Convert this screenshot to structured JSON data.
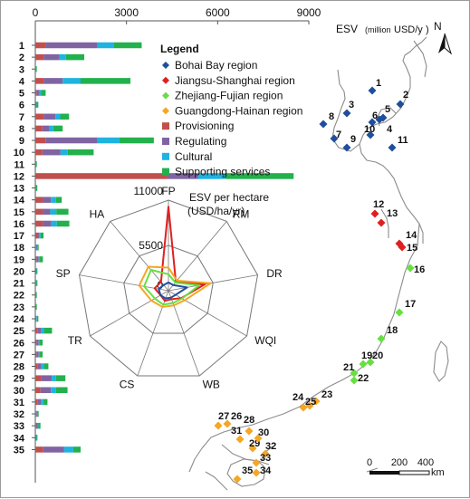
{
  "colors": {
    "bohai": "#1f4e9c",
    "jiangsu": "#e02020",
    "zhejiang": "#66e040",
    "guangdong": "#f5a623",
    "provisioning": "#c0504d",
    "regulating": "#8064a2",
    "cultural": "#1fb3e0",
    "supporting": "#22b14c",
    "coast": "#8c8c8c"
  },
  "bar_axis": {
    "ticks": [
      "0",
      "3000",
      "6000",
      "9000"
    ],
    "title_main": "ESV",
    "title_unit_small": "(million",
    "title_unit_rest": "USD/y",
    "title_close": ")"
  },
  "north_label": "N",
  "legend": {
    "title": "Legend",
    "items": [
      {
        "label": "Bohai Bay region",
        "marker": "diamond",
        "color_key": "bohai"
      },
      {
        "label": "Jiangsu-Shanghai region",
        "marker": "diamond",
        "color_key": "jiangsu"
      },
      {
        "label": "Zhejiang-Fujian region",
        "marker": "diamond",
        "color_key": "zhejiang"
      },
      {
        "label": "Guangdong-Hainan region",
        "marker": "diamond",
        "color_key": "guangdong"
      },
      {
        "label": "Provisioning",
        "marker": "square",
        "color_key": "provisioning"
      },
      {
        "label": "Regulating",
        "marker": "square",
        "color_key": "regulating"
      },
      {
        "label": "Cultural",
        "marker": "square",
        "color_key": "cultural"
      },
      {
        "label": "Supporting services",
        "marker": "square",
        "color_key": "supporting"
      }
    ]
  },
  "radar": {
    "title_line1": "ESV per hectare",
    "title_line2": "(USD/ha/yr)",
    "rings": [
      "11000",
      "5500",
      "0"
    ],
    "max": 11000,
    "axes": [
      "FP",
      "RM",
      "DR",
      "WQI",
      "WB",
      "CS",
      "TR",
      "SP",
      "HA"
    ],
    "series": [
      {
        "region": "Jiangsu-Shanghai",
        "color_key": "jiangsu",
        "values": [
          10200,
          1400,
          4500,
          1800,
          1100,
          1300,
          1100,
          1700,
          1400
        ]
      },
      {
        "region": "Guangdong-Hainan",
        "color_key": "guangdong",
        "values": [
          2800,
          1600,
          5200,
          2300,
          1900,
          2100,
          2400,
          3600,
          3800
        ]
      },
      {
        "region": "Zhejiang-Fujian",
        "color_key": "zhejiang",
        "values": [
          2000,
          1300,
          3800,
          1900,
          1600,
          1800,
          1900,
          3000,
          3300
        ]
      },
      {
        "region": "Bohai Bay",
        "color_key": "bohai",
        "values": [
          1000,
          900,
          2300,
          1000,
          900,
          1000,
          1100,
          1200,
          900
        ]
      }
    ]
  },
  "chart_data": {
    "type": "bar",
    "orientation": "horizontal-stacked",
    "categories": [
      "1",
      "2",
      "3",
      "4",
      "5",
      "6",
      "7",
      "8",
      "9",
      "10",
      "11",
      "12",
      "13",
      "14",
      "15",
      "16",
      "17",
      "18",
      "19",
      "20",
      "21",
      "22",
      "23",
      "24",
      "25",
      "26",
      "27",
      "28",
      "29",
      "30",
      "31",
      "32",
      "33",
      "34",
      "35"
    ],
    "series": [
      {
        "name": "Provisioning",
        "values": [
          330,
          280,
          5,
          280,
          40,
          10,
          280,
          230,
          350,
          230,
          5,
          4350,
          5,
          240,
          240,
          250,
          60,
          25,
          40,
          10,
          10,
          10,
          5,
          10,
          80,
          40,
          40,
          70,
          190,
          170,
          70,
          25,
          25,
          15,
          260
        ]
      },
      {
        "name": "Regulating",
        "values": [
          1720,
          520,
          10,
          620,
          100,
          20,
          380,
          230,
          1700,
          600,
          10,
          1000,
          10,
          270,
          250,
          280,
          70,
          20,
          70,
          20,
          15,
          10,
          10,
          25,
          110,
          70,
          70,
          130,
          350,
          340,
          110,
          30,
          50,
          15,
          690
        ]
      },
      {
        "name": "Cultural",
        "values": [
          520,
          210,
          15,
          590,
          45,
          15,
          160,
          130,
          720,
          240,
          10,
          900,
          15,
          170,
          200,
          180,
          40,
          25,
          40,
          15,
          15,
          10,
          10,
          20,
          90,
          40,
          40,
          80,
          140,
          170,
          80,
          20,
          30,
          15,
          300
        ]
      },
      {
        "name": "Supporting services",
        "values": [
          930,
          600,
          20,
          1640,
          155,
          55,
          290,
          310,
          1130,
          850,
          25,
          2250,
          35,
          190,
          400,
          410,
          100,
          40,
          100,
          25,
          30,
          20,
          25,
          45,
          270,
          90,
          90,
          150,
          310,
          380,
          140,
          35,
          65,
          25,
          240
        ]
      }
    ],
    "xlim": [
      0,
      9000
    ],
    "xticks": [
      0,
      3000,
      6000,
      9000
    ],
    "xlabel": "ESV (million USD/y)"
  },
  "sites": [
    {
      "n": "1",
      "region": "bohai"
    },
    {
      "n": "2",
      "region": "bohai"
    },
    {
      "n": "3",
      "region": "bohai"
    },
    {
      "n": "4",
      "region": "bohai"
    },
    {
      "n": "5",
      "region": "bohai"
    },
    {
      "n": "6",
      "region": "bohai"
    },
    {
      "n": "7",
      "region": "bohai"
    },
    {
      "n": "8",
      "region": "bohai"
    },
    {
      "n": "9",
      "region": "bohai"
    },
    {
      "n": "10",
      "region": "bohai"
    },
    {
      "n": "11",
      "region": "bohai"
    },
    {
      "n": "12",
      "region": "jiangsu"
    },
    {
      "n": "13",
      "region": "jiangsu"
    },
    {
      "n": "14",
      "region": "jiangsu"
    },
    {
      "n": "15",
      "region": "jiangsu"
    },
    {
      "n": "16",
      "region": "zhejiang"
    },
    {
      "n": "17",
      "region": "zhejiang"
    },
    {
      "n": "18",
      "region": "zhejiang"
    },
    {
      "n": "19",
      "region": "zhejiang"
    },
    {
      "n": "20",
      "region": "zhejiang"
    },
    {
      "n": "21",
      "region": "zhejiang"
    },
    {
      "n": "22",
      "region": "zhejiang"
    },
    {
      "n": "23",
      "region": "guangdong"
    },
    {
      "n": "24",
      "region": "guangdong"
    },
    {
      "n": "25",
      "region": "guangdong"
    },
    {
      "n": "26",
      "region": "guangdong"
    },
    {
      "n": "27",
      "region": "guangdong"
    },
    {
      "n": "28",
      "region": "guangdong"
    },
    {
      "n": "29",
      "region": "guangdong"
    },
    {
      "n": "30",
      "region": "guangdong"
    },
    {
      "n": "31",
      "region": "guangdong"
    },
    {
      "n": "32",
      "region": "guangdong"
    },
    {
      "n": "33",
      "region": "guangdong"
    },
    {
      "n": "34",
      "region": "guangdong"
    },
    {
      "n": "35",
      "region": "guangdong"
    }
  ],
  "scale_bar": {
    "ticks": [
      "0",
      "200",
      "400"
    ],
    "unit": "km"
  }
}
